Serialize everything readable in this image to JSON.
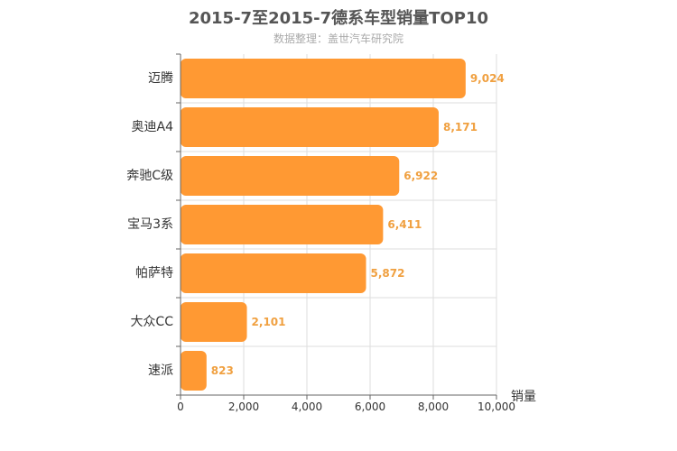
{
  "chart_data": {
    "type": "bar",
    "orientation": "horizontal",
    "title": "2015-7至2015-7德系车型销量TOP10",
    "subtitle": "数据整理：盖世汽车研究院",
    "xlabel": "销量",
    "ylabel": "",
    "categories": [
      "迈腾",
      "奥迪A4",
      "奔驰C级",
      "宝马3系",
      "帕萨特",
      "大众CC",
      "速派"
    ],
    "values": [
      9024,
      8171,
      6922,
      6411,
      5872,
      2101,
      823
    ],
    "value_labels": [
      "9,024",
      "8,171",
      "6,922",
      "6,411",
      "5,872",
      "2,101",
      "823"
    ],
    "xlim": [
      0,
      10000
    ],
    "xticks": [
      0,
      2000,
      4000,
      6000,
      8000,
      10000
    ],
    "xtick_labels": [
      "0",
      "2,000",
      "4,000",
      "6,000",
      "8,000",
      "10,000"
    ],
    "grid": true,
    "legend": "none",
    "colors": {
      "bar": "#ff9933",
      "value_label": "#f0a040",
      "grid": "#dddddd",
      "axis": "#666666",
      "text": "#333333"
    }
  }
}
